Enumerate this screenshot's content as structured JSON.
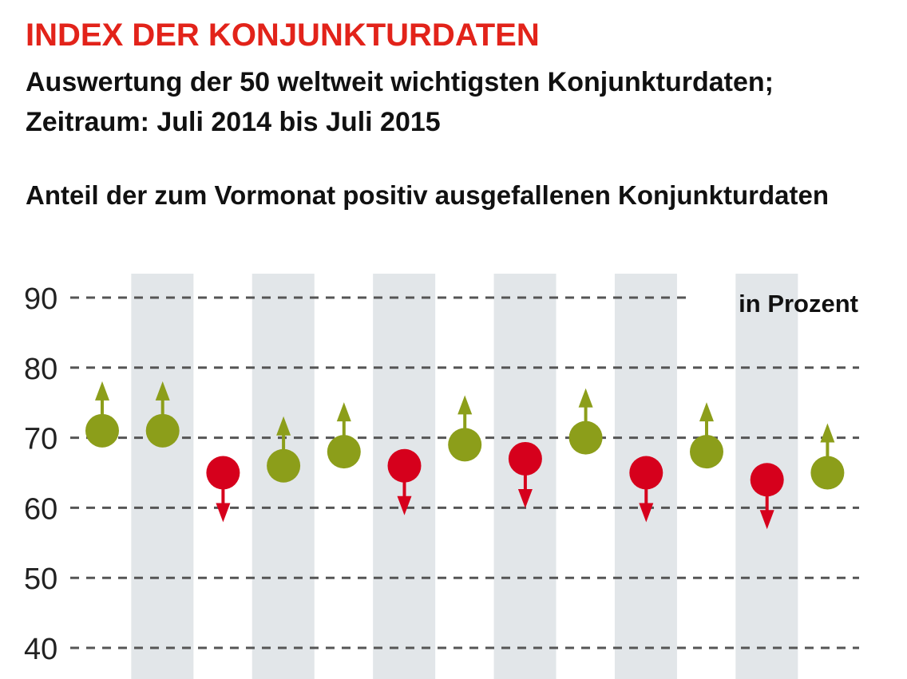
{
  "header": {
    "title": "INDEX DER KONJUNKTURDATEN",
    "subtitle_line1": "Auswertung der 50 weltweit wichtigsten Konjunkturdaten;",
    "subtitle_line2": "Zeitraum: Juli 2014 bis Juli 2015",
    "caption": "Anteil der zum Vormonat positiv ausgefallenen Konjunkturdaten"
  },
  "chart_data": {
    "type": "scatter",
    "unit_label": "in Prozent",
    "ylim": [
      40,
      90
    ],
    "yticks": [
      90,
      80,
      70,
      60,
      50,
      40
    ],
    "grid": true,
    "points": [
      {
        "value": 71,
        "direction": "up"
      },
      {
        "value": 71,
        "direction": "up"
      },
      {
        "value": 65,
        "direction": "down"
      },
      {
        "value": 66,
        "direction": "up"
      },
      {
        "value": 68,
        "direction": "up"
      },
      {
        "value": 66,
        "direction": "down"
      },
      {
        "value": 69,
        "direction": "up"
      },
      {
        "value": 67,
        "direction": "down"
      },
      {
        "value": 70,
        "direction": "up"
      },
      {
        "value": 65,
        "direction": "down"
      },
      {
        "value": 68,
        "direction": "up"
      },
      {
        "value": 64,
        "direction": "down"
      },
      {
        "value": 65,
        "direction": "up"
      }
    ],
    "colors": {
      "up": "#8c9e1a",
      "down": "#d6001c",
      "band": "#e2e6e9",
      "grid": "#555555",
      "title": "#e2231a"
    }
  }
}
